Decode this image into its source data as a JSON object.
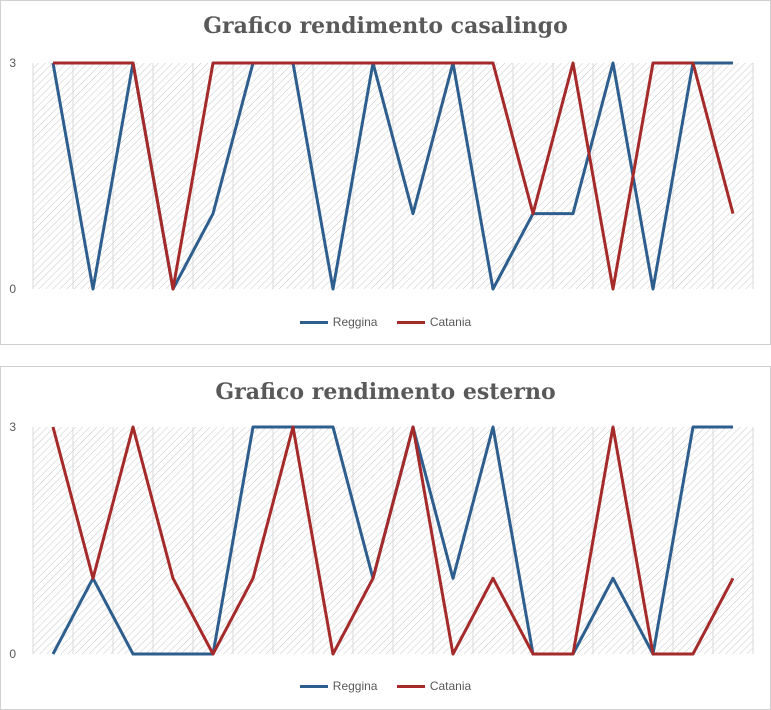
{
  "colors": {
    "reggina": "#2E5E8E",
    "catania": "#A52A2A"
  },
  "chart_data": [
    {
      "type": "line",
      "title": "Grafico rendimento casalingo",
      "ylim": [
        0,
        3
      ],
      "yticks": [
        "3",
        "0"
      ],
      "x": [
        1,
        2,
        3,
        4,
        5,
        6,
        7,
        8,
        9,
        10,
        11,
        12,
        13,
        14,
        15,
        16,
        17,
        18
      ],
      "series": [
        {
          "name": "Reggina",
          "values": [
            3,
            0,
            3,
            0,
            1,
            3,
            3,
            0,
            3,
            1,
            3,
            0,
            1,
            1,
            3,
            0,
            3,
            3
          ]
        },
        {
          "name": "Catania",
          "values": [
            3,
            3,
            3,
            0,
            3,
            3,
            3,
            3,
            3,
            3,
            3,
            3,
            1,
            3,
            0,
            3,
            3,
            1
          ]
        }
      ],
      "grid": true,
      "legend": "bottom"
    },
    {
      "type": "line",
      "title": "Grafico rendimento esterno",
      "ylim": [
        0,
        3
      ],
      "yticks": [
        "3",
        "0"
      ],
      "x": [
        1,
        2,
        3,
        4,
        5,
        6,
        7,
        8,
        9,
        10,
        11,
        12,
        13,
        14,
        15,
        16,
        17,
        18
      ],
      "series": [
        {
          "name": "Reggina",
          "values": [
            0,
            1,
            0,
            0,
            0,
            3,
            3,
            3,
            1,
            3,
            1,
            3,
            0,
            0,
            1,
            0,
            3,
            3
          ]
        },
        {
          "name": "Catania",
          "values": [
            3,
            1,
            3,
            1,
            0,
            1,
            3,
            0,
            1,
            3,
            0,
            1,
            0,
            0,
            3,
            0,
            0,
            1
          ]
        }
      ],
      "grid": true,
      "legend": "bottom"
    }
  ]
}
